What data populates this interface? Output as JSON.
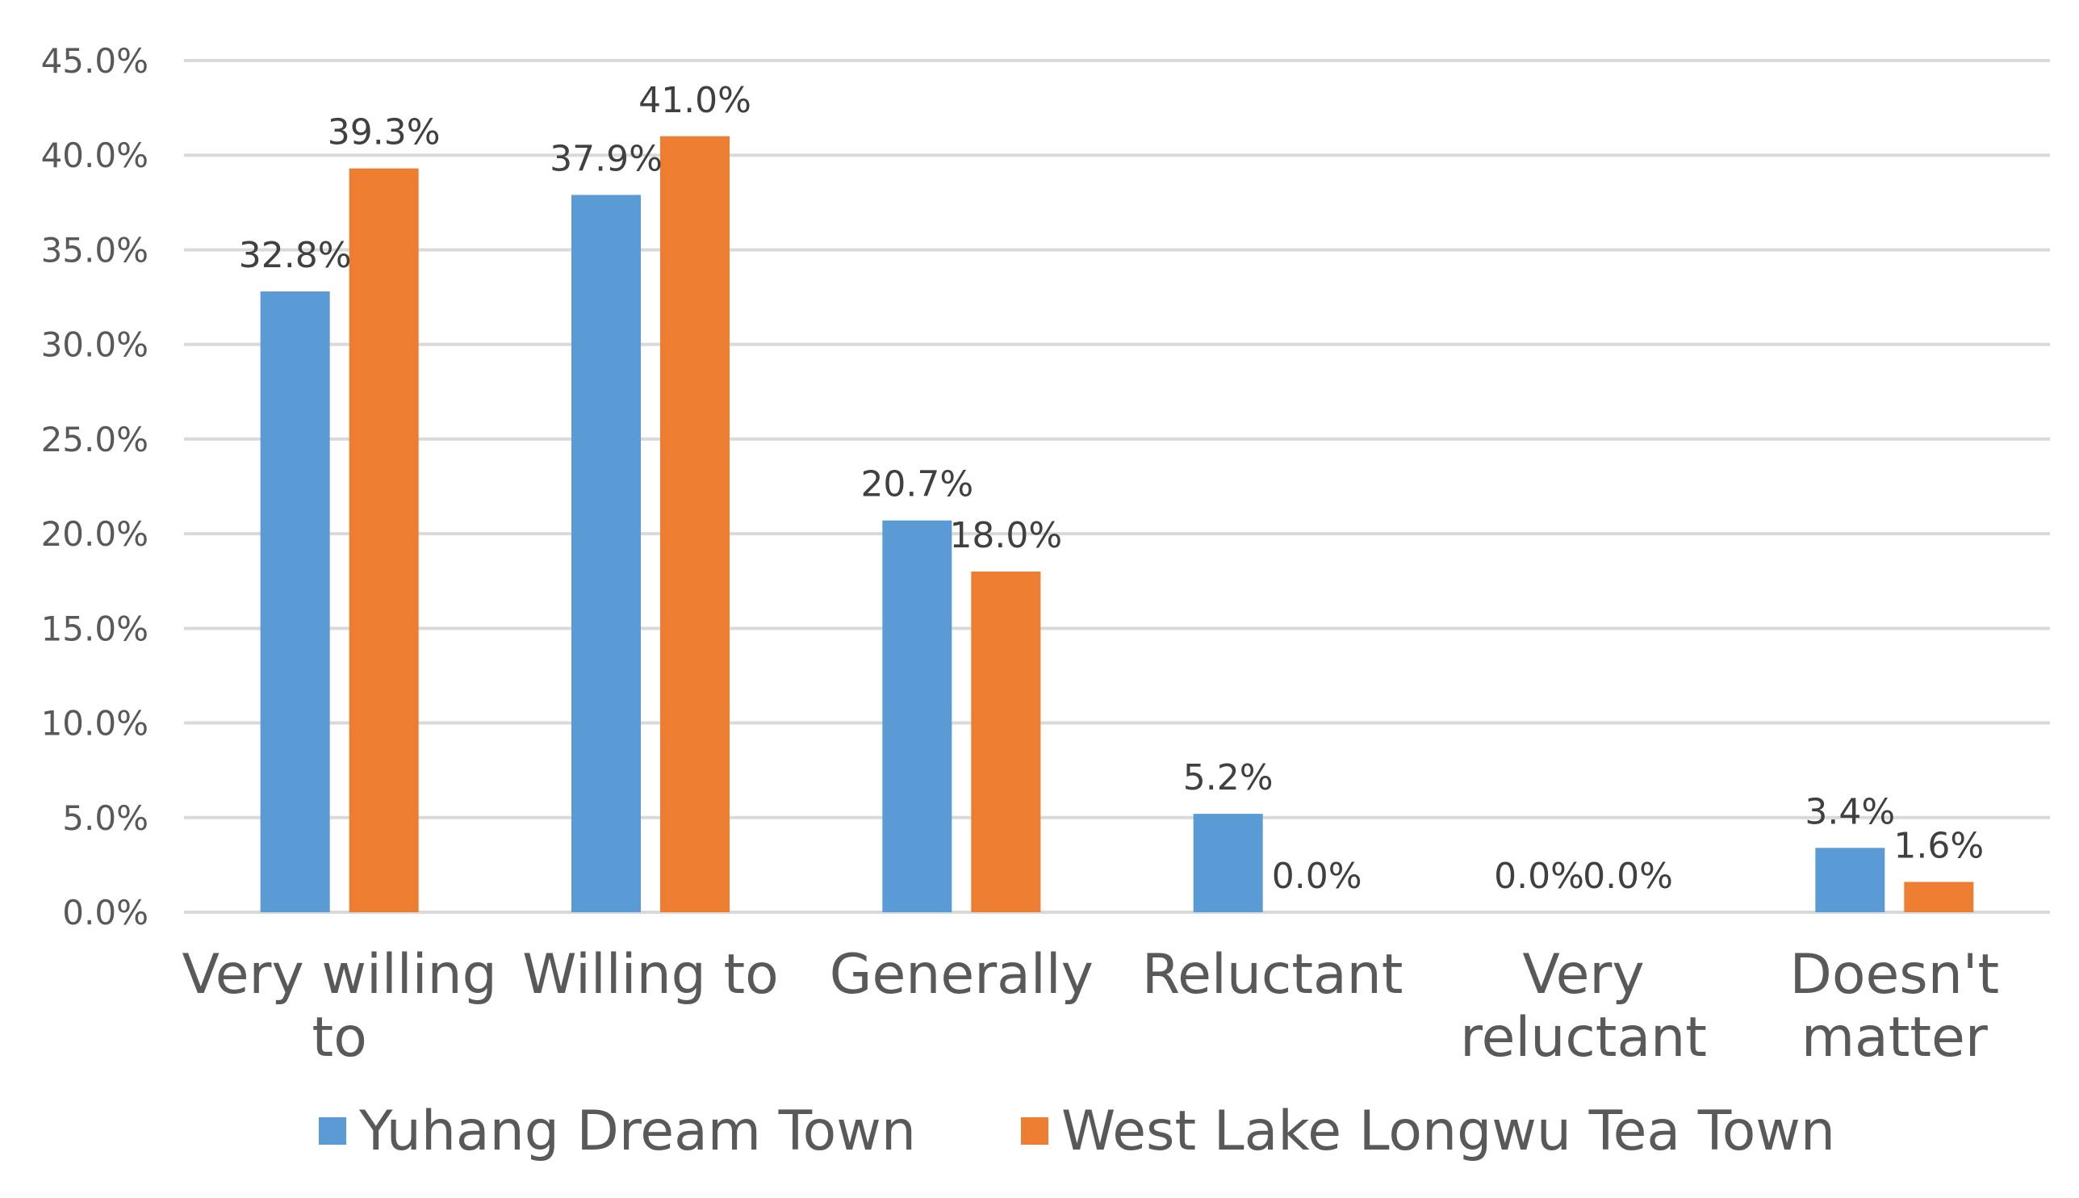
{
  "chart_data": {
    "type": "bar",
    "title": "",
    "xlabel": "",
    "ylabel": "",
    "categories": [
      [
        "Very willing",
        "to"
      ],
      [
        "Willing to"
      ],
      [
        "Generally"
      ],
      [
        "Reluctant"
      ],
      [
        "Very",
        "reluctant"
      ],
      [
        "Doesn't",
        "matter"
      ]
    ],
    "series": [
      {
        "name": "Yuhang Dream Town",
        "color": "#5b9bd5",
        "values": [
          32.8,
          37.9,
          20.7,
          5.2,
          0.0,
          3.4
        ],
        "labels": [
          "32.8%",
          "37.9%",
          "20.7%",
          "5.2%",
          "0.0%",
          "3.4%"
        ]
      },
      {
        "name": "West Lake Longwu Tea Town",
        "color": "#ed7d31",
        "values": [
          39.3,
          41.0,
          18.0,
          0.0,
          0.0,
          1.6
        ],
        "labels": [
          "39.3%",
          "41.0%",
          "18.0%",
          "0.0%",
          "0.0%",
          "1.6%"
        ]
      }
    ],
    "ylim": [
      0,
      45
    ],
    "yticks": [
      {
        "value": 0,
        "label": "0.0%"
      },
      {
        "value": 5,
        "label": "5.0%"
      },
      {
        "value": 10,
        "label": "10.0%"
      },
      {
        "value": 15,
        "label": "15.0%"
      },
      {
        "value": 20,
        "label": "20.0%"
      },
      {
        "value": 25,
        "label": "25.0%"
      },
      {
        "value": 30,
        "label": "30.0%"
      },
      {
        "value": 35,
        "label": "35.0%"
      },
      {
        "value": 40,
        "label": "40.0%"
      },
      {
        "value": 45,
        "label": "45.0%"
      }
    ],
    "grid": true,
    "legend": "bottom"
  }
}
